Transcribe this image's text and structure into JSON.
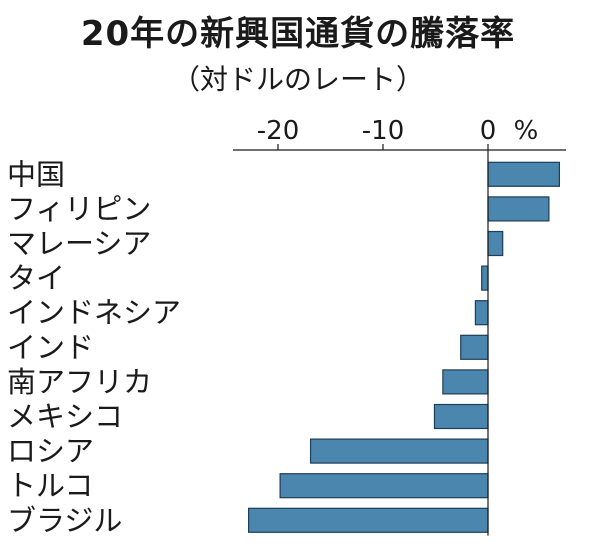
{
  "chart_data": {
    "type": "bar",
    "orientation": "horizontal",
    "title": "20年の新興国通貨の騰落率",
    "subtitle": "（対ドルのレート）",
    "unit": "%",
    "categories": [
      "中国",
      "フィリピン",
      "マレーシア",
      "タイ",
      "インドネシア",
      "インド",
      "南アフリカ",
      "メキシコ",
      "ロシア",
      "トルコ",
      "ブラジル"
    ],
    "values": [
      6.8,
      5.8,
      1.4,
      -0.6,
      -1.2,
      -2.6,
      -4.3,
      -5.1,
      -16.9,
      -19.8,
      -22.8
    ],
    "xlim": [
      -24,
      7
    ],
    "xticks": [
      -20,
      -10,
      0
    ],
    "xtick_labels": [
      "-20",
      "-10",
      "0"
    ],
    "bar_color": "#4a86ad"
  }
}
